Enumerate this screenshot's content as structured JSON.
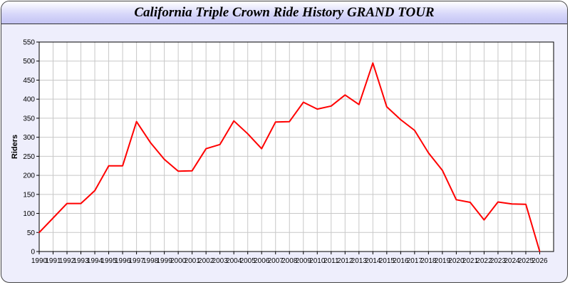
{
  "chart_data": {
    "type": "line",
    "title": "California Triple Crown Ride History GRAND TOUR",
    "xlabel": "",
    "ylabel": "Riders",
    "xlim": [
      1990,
      2027
    ],
    "ylim": [
      0,
      550
    ],
    "yticks": [
      0,
      50,
      100,
      150,
      200,
      250,
      300,
      350,
      400,
      450,
      500,
      550
    ],
    "grid": true,
    "line_color": "#ff0000",
    "x": [
      1990,
      1991,
      1992,
      1993,
      1994,
      1995,
      1996,
      1997,
      1998,
      1999,
      2000,
      2001,
      2002,
      2003,
      2004,
      2005,
      2006,
      2007,
      2008,
      2009,
      2010,
      2011,
      2012,
      2013,
      2014,
      2015,
      2016,
      2017,
      2018,
      2019,
      2020,
      2021,
      2022,
      2023,
      2024,
      2025,
      2026
    ],
    "values": [
      50,
      88,
      126,
      126,
      160,
      225,
      225,
      341,
      286,
      242,
      211,
      212,
      270,
      281,
      343,
      309,
      270,
      340,
      341,
      392,
      374,
      382,
      411,
      386,
      495,
      380,
      346,
      318,
      259,
      213,
      136,
      129,
      83,
      130,
      125,
      124,
      0
    ]
  }
}
